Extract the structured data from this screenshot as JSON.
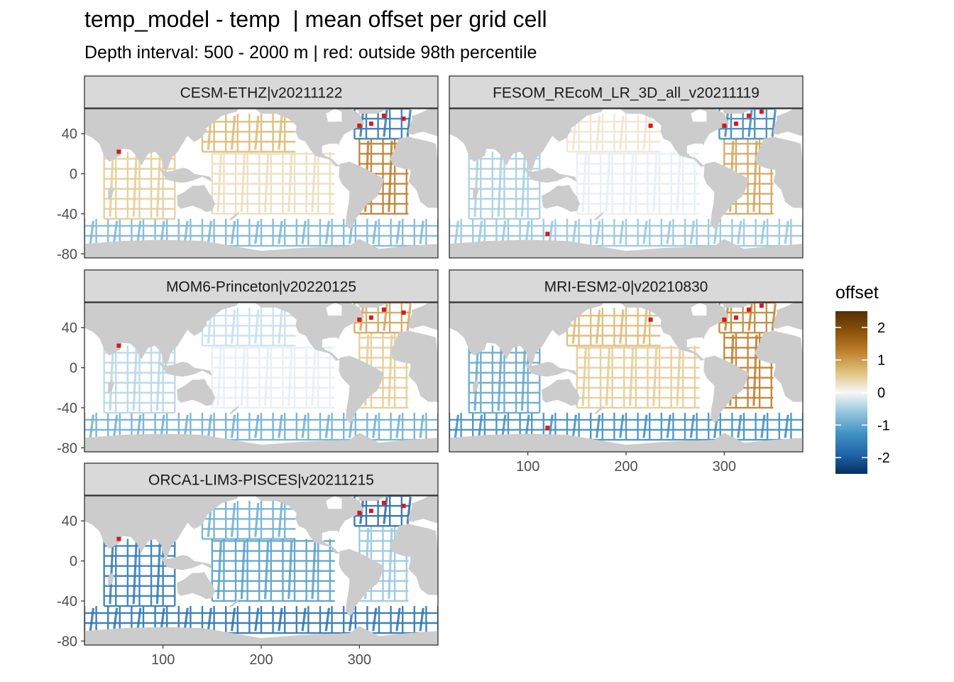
{
  "title": "temp_model - temp  | mean offset per grid cell",
  "subtitle": "Depth interval: 500 - 2000 m | red: outside 98th percentile",
  "chart_data": {
    "type": "heatmap",
    "facet_layout": "3 rows x 2 columns",
    "x_ticks": [
      100,
      200,
      300
    ],
    "y_ticks": [
      40,
      0,
      -40,
      -80
    ],
    "xlim": [
      20,
      380
    ],
    "ylim": [
      -84,
      65
    ],
    "land_color": "#cccccc",
    "ocean_color": "#ffffff",
    "outlier_color": "#d7191c",
    "panels": [
      {
        "label": "CESM-ETHZ|v20211122",
        "bias": {
          "north_pacific": 0.7,
          "tropical_pacific": 0.3,
          "atlantic": 1.3,
          "north_atlantic": -1.6,
          "southern_ocean": -0.8,
          "indian": 0.5
        }
      },
      {
        "label": "FESOM_REcoM_LR_3D_all_v20211119",
        "bias": {
          "north_pacific": 0.2,
          "tropical_pacific": -0.1,
          "atlantic": 0.9,
          "north_atlantic": -1.4,
          "southern_ocean": -0.6,
          "indian": -0.5
        }
      },
      {
        "label": "MOM6-Princeton|v20220125",
        "bias": {
          "north_pacific": -0.3,
          "tropical_pacific": -0.1,
          "atlantic": 0.5,
          "north_atlantic": 0.9,
          "southern_ocean": -0.9,
          "indian": -0.4
        }
      },
      {
        "label": "MRI-ESM2-0|v20210830",
        "bias": {
          "north_pacific": 0.7,
          "tropical_pacific": 0.5,
          "atlantic": 1.3,
          "north_atlantic": 1.2,
          "southern_ocean": -1.3,
          "indian": -1.0
        }
      },
      {
        "label": "ORCA1-LIM3-PISCES|v20211215",
        "bias": {
          "north_pacific": -0.9,
          "tropical_pacific": -1.1,
          "atlantic": -0.6,
          "north_atlantic": -1.8,
          "southern_ocean": -1.7,
          "indian": -1.6
        }
      }
    ],
    "legend": {
      "title": "offset",
      "ticks": [
        "2",
        "1",
        "0",
        "-1",
        "-2"
      ],
      "tick_values": [
        2,
        1,
        0,
        -1,
        -2
      ],
      "range": [
        -2.5,
        2.5
      ],
      "colors": [
        "#003c30",
        "#053061",
        "#2166ac",
        "#4393c3",
        "#92c5de",
        "#f7f7f7",
        "#dfc27d",
        "#bf812d",
        "#8c510a",
        "#543005"
      ]
    }
  }
}
